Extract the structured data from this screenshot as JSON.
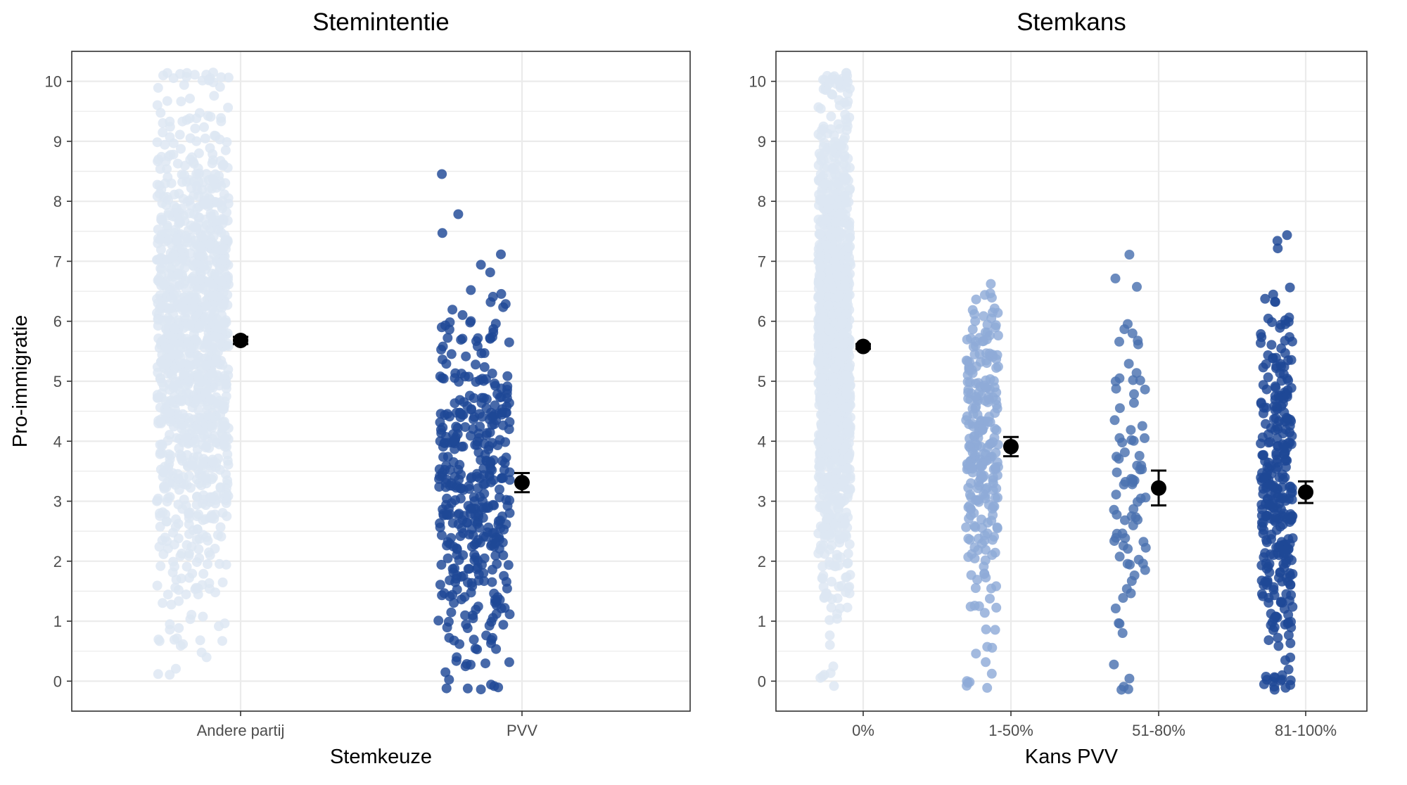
{
  "chart_data": [
    {
      "type": "scatter",
      "title": "Stemintentie",
      "xlabel": "Stemkeuze",
      "ylabel": "Pro-immigratie",
      "ylim": [
        -0.5,
        10.5
      ],
      "yticks": [
        "0",
        "1",
        "2",
        "3",
        "4",
        "5",
        "6",
        "7",
        "8",
        "9",
        "10"
      ],
      "grid": true,
      "categories": [
        "Andere partij",
        "PVV"
      ],
      "colors": [
        "#dde6f3",
        "#1f4896"
      ],
      "groups": [
        {
          "name": "Andere partij",
          "n_points": 1200,
          "mean": 5.68,
          "ci": [
            5.62,
            5.74
          ],
          "point_mean": 5.7,
          "point_sd": 2.0
        },
        {
          "name": "PVV",
          "n_points": 420,
          "mean": 3.31,
          "ci": [
            3.15,
            3.47
          ],
          "point_mean": 3.3,
          "point_sd": 1.55
        }
      ]
    },
    {
      "type": "scatter",
      "title": "Stemkans",
      "xlabel": "Kans PVV",
      "ylabel": "",
      "ylim": [
        -0.5,
        10.5
      ],
      "yticks": [
        "0",
        "1",
        "2",
        "3",
        "4",
        "5",
        "6",
        "7",
        "8",
        "9",
        "10"
      ],
      "grid": true,
      "categories": [
        "0%",
        "1-50%",
        "51-80%",
        "81-100%"
      ],
      "colors": [
        "#dde6f3",
        "#8fabd8",
        "#4a72b0",
        "#1f4896"
      ],
      "groups": [
        {
          "name": "0%",
          "n_points": 1300,
          "mean": 5.58,
          "ci": [
            5.54,
            5.62
          ],
          "point_mean": 5.6,
          "point_sd": 2.0
        },
        {
          "name": "1-50%",
          "n_points": 260,
          "mean": 3.91,
          "ci": [
            3.75,
            4.07
          ],
          "point_mean": 3.9,
          "point_sd": 1.5
        },
        {
          "name": "51-80%",
          "n_points": 85,
          "mean": 3.22,
          "ci": [
            2.93,
            3.51
          ],
          "point_mean": 3.2,
          "point_sd": 1.5
        },
        {
          "name": "81-100%",
          "n_points": 320,
          "mean": 3.15,
          "ci": [
            2.97,
            3.33
          ],
          "point_mean": 3.15,
          "point_sd": 1.6
        }
      ]
    }
  ]
}
